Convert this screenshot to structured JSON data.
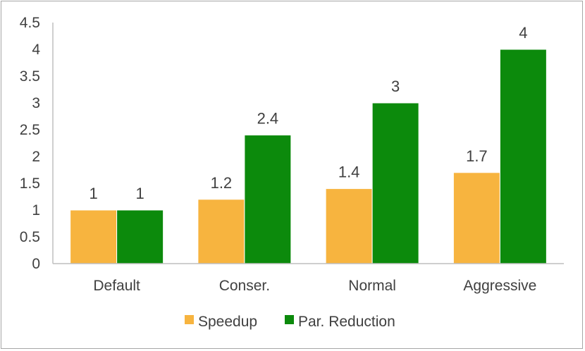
{
  "chart_data": {
    "type": "bar",
    "categories": [
      "Default",
      "Conser.",
      "Normal",
      "Aggressive"
    ],
    "series": [
      {
        "name": "Speedup",
        "values": [
          1,
          1.2,
          1.4,
          1.7
        ],
        "color": "#f7b43f"
      },
      {
        "name": "Par. Reduction",
        "values": [
          1,
          2.4,
          3,
          4
        ],
        "color": "#0c8a0c"
      }
    ],
    "data_labels": [
      [
        "1",
        "1.2",
        "1.4",
        "1.7"
      ],
      [
        "1",
        "2.4",
        "3",
        "4"
      ]
    ],
    "y_ticks": [
      "0",
      "0.5",
      "1",
      "1.5",
      "2",
      "2.5",
      "3",
      "3.5",
      "4",
      "4.5"
    ],
    "ylim": [
      0,
      4.5
    ],
    "grid": false,
    "legend_position": "bottom"
  }
}
